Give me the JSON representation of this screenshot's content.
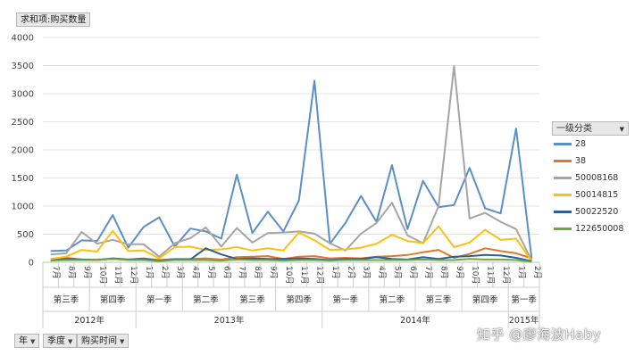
{
  "pivot": {
    "value_field_label": "求和项:购买数量",
    "legend_field_label": "一级分类",
    "bottom_fields": [
      "年",
      "季度",
      "购买时间"
    ],
    "watermark": "知乎 @廖海波Haby"
  },
  "colors": {
    "28": "#5b8fc7",
    "38": "#e0762f",
    "50008168": "#a5a5a5",
    "50014815": "#fcc10e",
    "50022520": "#2f5f97",
    "122650008": "#6aa944"
  },
  "chart_data": {
    "type": "line",
    "title": "",
    "xlabel": "",
    "ylabel": "",
    "ylim": [
      0,
      4000
    ],
    "yticks": [
      0,
      500,
      1000,
      1500,
      2000,
      2500,
      3000,
      3500,
      4000
    ],
    "legend_position": "right",
    "categories": [
      "7月",
      "8月",
      "9月",
      "10月",
      "11月",
      "12月",
      "1月",
      "2月",
      "3月",
      "4月",
      "5月",
      "6月",
      "7月",
      "8月",
      "9月",
      "10月",
      "11月",
      "12月",
      "1月",
      "2月",
      "3月",
      "4月",
      "5月",
      "6月",
      "7月",
      "8月",
      "9月",
      "10月",
      "11月",
      "12月",
      "1月",
      "2月"
    ],
    "quarters": [
      {
        "label": "第三季",
        "span": 3
      },
      {
        "label": "第四季",
        "span": 3
      },
      {
        "label": "第一季",
        "span": 3
      },
      {
        "label": "第二季",
        "span": 3
      },
      {
        "label": "第三季",
        "span": 3
      },
      {
        "label": "第四季",
        "span": 3
      },
      {
        "label": "第一季",
        "span": 3
      },
      {
        "label": "第二季",
        "span": 3
      },
      {
        "label": "第三季",
        "span": 3
      },
      {
        "label": "第四季",
        "span": 3
      },
      {
        "label": "第一季",
        "span": 2
      }
    ],
    "years": [
      {
        "label": "2012年",
        "span": 6
      },
      {
        "label": "2013年",
        "span": 12
      },
      {
        "label": "2014年",
        "span": 12
      },
      {
        "label": "2015年",
        "span": 2
      }
    ],
    "series": [
      {
        "name": "28",
        "values": [
          200,
          210,
          390,
          380,
          840,
          260,
          630,
          800,
          280,
          600,
          550,
          420,
          1560,
          520,
          900,
          550,
          1100,
          3230,
          330,
          700,
          1180,
          720,
          1730,
          590,
          1450,
          980,
          1020,
          1680,
          960,
          870,
          2380,
          70
        ]
      },
      {
        "name": "38",
        "values": [
          60,
          80,
          50,
          50,
          60,
          50,
          70,
          40,
          60,
          60,
          70,
          50,
          90,
          100,
          110,
          60,
          100,
          110,
          70,
          80,
          70,
          100,
          110,
          130,
          180,
          220,
          80,
          150,
          250,
          200,
          160,
          70
        ]
      },
      {
        "name": "50008168",
        "values": [
          140,
          160,
          540,
          330,
          400,
          320,
          320,
          100,
          340,
          430,
          620,
          280,
          610,
          350,
          520,
          530,
          550,
          510,
          340,
          210,
          510,
          700,
          1060,
          480,
          340,
          1000,
          3490,
          780,
          880,
          720,
          590,
          30
        ]
      },
      {
        "name": "50014815",
        "values": [
          60,
          100,
          220,
          190,
          560,
          200,
          210,
          70,
          270,
          280,
          220,
          230,
          270,
          210,
          250,
          210,
          530,
          390,
          220,
          230,
          260,
          330,
          490,
          380,
          340,
          640,
          270,
          350,
          580,
          400,
          420,
          20
        ]
      },
      {
        "name": "50022520",
        "values": [
          30,
          60,
          50,
          40,
          70,
          50,
          60,
          30,
          50,
          50,
          250,
          140,
          60,
          70,
          60,
          60,
          70,
          60,
          40,
          60,
          60,
          90,
          60,
          50,
          90,
          60,
          100,
          110,
          130,
          120,
          80,
          20
        ]
      },
      {
        "name": "122650008",
        "values": [
          30,
          40,
          40,
          40,
          60,
          40,
          40,
          20,
          40,
          40,
          40,
          30,
          50,
          40,
          40,
          30,
          40,
          40,
          30,
          40,
          40,
          40,
          40,
          40,
          50,
          40,
          40,
          60,
          50,
          50,
          40,
          10
        ]
      }
    ]
  }
}
